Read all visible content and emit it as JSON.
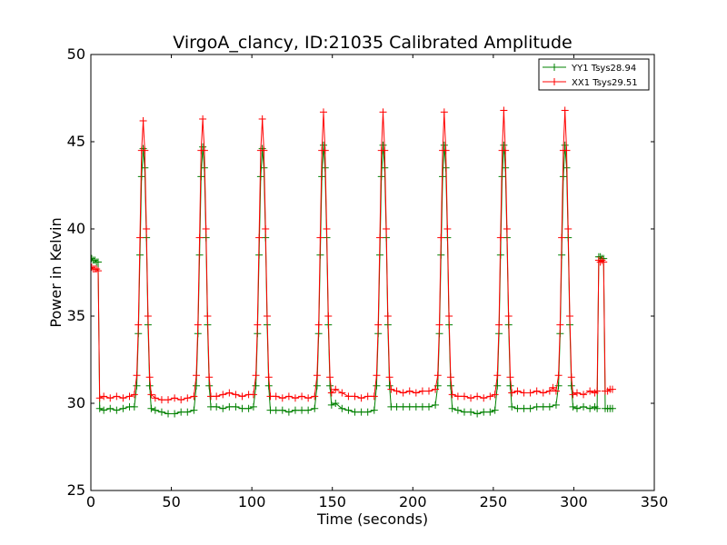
{
  "chart_data": {
    "type": "line",
    "title": "VirgoA_clancy, ID:21035 Calibrated Amplitude",
    "xlabel": "Time (seconds)",
    "ylabel": "Power in Kelvin",
    "xlim": [
      0,
      350
    ],
    "ylim": [
      25,
      50
    ],
    "x_ticks": [
      "0",
      "50",
      "100",
      "150",
      "200",
      "250",
      "300",
      "350"
    ],
    "y_ticks": [
      "25",
      "30",
      "35",
      "40",
      "45",
      "50"
    ],
    "legend_position": "top-right",
    "grid": false,
    "series": [
      {
        "name": "YY1 Tsys28.94",
        "color": "#008000",
        "marker": "+",
        "points": [
          [
            0.5,
            38.3
          ],
          [
            1.5,
            38.2
          ],
          [
            2.5,
            38.2
          ],
          [
            3.5,
            38.1
          ],
          [
            4.5,
            38.1
          ],
          [
            5.5,
            29.7
          ],
          [
            8,
            29.6
          ],
          [
            12,
            29.7
          ],
          [
            16,
            29.6
          ],
          [
            20,
            29.7
          ],
          [
            24,
            29.8
          ],
          [
            27,
            29.8
          ],
          [
            28.5,
            31.0
          ],
          [
            29.5,
            34.0
          ],
          [
            30.5,
            38.5
          ],
          [
            31.5,
            43.0
          ],
          [
            32.5,
            44.6
          ],
          [
            33.5,
            43.5
          ],
          [
            34.5,
            39.5
          ],
          [
            35.5,
            34.5
          ],
          [
            36.5,
            31.0
          ],
          [
            37.5,
            29.7
          ],
          [
            40,
            29.6
          ],
          [
            44,
            29.5
          ],
          [
            48,
            29.4
          ],
          [
            52,
            29.4
          ],
          [
            56,
            29.5
          ],
          [
            60,
            29.5
          ],
          [
            64,
            29.6
          ],
          [
            65.5,
            31.0
          ],
          [
            66.5,
            34.0
          ],
          [
            67.5,
            38.5
          ],
          [
            68.5,
            43.0
          ],
          [
            69.5,
            44.7
          ],
          [
            70.5,
            43.5
          ],
          [
            71.5,
            39.5
          ],
          [
            72.5,
            34.5
          ],
          [
            73.5,
            31.0
          ],
          [
            74.5,
            29.8
          ],
          [
            78,
            29.8
          ],
          [
            82,
            29.7
          ],
          [
            86,
            29.8
          ],
          [
            90,
            29.8
          ],
          [
            94,
            29.7
          ],
          [
            98,
            29.7
          ],
          [
            101,
            29.8
          ],
          [
            102.5,
            31.0
          ],
          [
            103.5,
            34.0
          ],
          [
            104.5,
            38.5
          ],
          [
            105.5,
            43.0
          ],
          [
            106.5,
            44.6
          ],
          [
            107.5,
            43.5
          ],
          [
            108.5,
            39.5
          ],
          [
            109.5,
            34.5
          ],
          [
            110.5,
            31.0
          ],
          [
            111.5,
            29.6
          ],
          [
            115,
            29.6
          ],
          [
            119,
            29.6
          ],
          [
            123,
            29.5
          ],
          [
            127,
            29.6
          ],
          [
            131,
            29.6
          ],
          [
            135,
            29.6
          ],
          [
            139,
            29.7
          ],
          [
            140.5,
            31.0
          ],
          [
            141.5,
            34.0
          ],
          [
            142.5,
            38.5
          ],
          [
            143.5,
            43.0
          ],
          [
            144.5,
            44.8
          ],
          [
            145.5,
            43.5
          ],
          [
            146.5,
            39.5
          ],
          [
            147.5,
            34.5
          ],
          [
            148.5,
            31.0
          ],
          [
            149.5,
            29.9
          ],
          [
            152,
            30.0
          ],
          [
            156,
            29.7
          ],
          [
            160,
            29.6
          ],
          [
            164,
            29.5
          ],
          [
            168,
            29.5
          ],
          [
            172,
            29.5
          ],
          [
            176,
            29.6
          ],
          [
            177.5,
            31.0
          ],
          [
            178.5,
            34.0
          ],
          [
            179.5,
            38.5
          ],
          [
            180.5,
            43.0
          ],
          [
            181.5,
            44.8
          ],
          [
            182.5,
            43.5
          ],
          [
            183.5,
            39.5
          ],
          [
            184.5,
            34.5
          ],
          [
            185.5,
            31.0
          ],
          [
            186.5,
            29.8
          ],
          [
            190,
            29.8
          ],
          [
            194,
            29.8
          ],
          [
            198,
            29.8
          ],
          [
            202,
            29.8
          ],
          [
            206,
            29.8
          ],
          [
            210,
            29.8
          ],
          [
            214,
            29.9
          ],
          [
            215.5,
            31.0
          ],
          [
            216.5,
            34.0
          ],
          [
            217.5,
            38.5
          ],
          [
            218.5,
            43.0
          ],
          [
            219.5,
            44.8
          ],
          [
            220.5,
            43.5
          ],
          [
            221.5,
            39.5
          ],
          [
            222.5,
            34.5
          ],
          [
            223.5,
            31.0
          ],
          [
            224.5,
            29.7
          ],
          [
            228,
            29.6
          ],
          [
            232,
            29.5
          ],
          [
            236,
            29.5
          ],
          [
            240,
            29.4
          ],
          [
            244,
            29.5
          ],
          [
            248,
            29.5
          ],
          [
            251,
            29.6
          ],
          [
            252.5,
            31.0
          ],
          [
            253.5,
            34.0
          ],
          [
            254.5,
            38.5
          ],
          [
            255.5,
            43.0
          ],
          [
            256.5,
            44.8
          ],
          [
            257.5,
            43.5
          ],
          [
            258.5,
            39.5
          ],
          [
            259.5,
            34.5
          ],
          [
            260.5,
            31.0
          ],
          [
            261.5,
            29.8
          ],
          [
            265,
            29.7
          ],
          [
            269,
            29.7
          ],
          [
            273,
            29.7
          ],
          [
            277,
            29.8
          ],
          [
            281,
            29.8
          ],
          [
            285,
            29.8
          ],
          [
            289,
            29.9
          ],
          [
            290.5,
            31.0
          ],
          [
            291.5,
            34.0
          ],
          [
            292.5,
            38.5
          ],
          [
            293.5,
            43.0
          ],
          [
            294.5,
            44.8
          ],
          [
            295.5,
            43.5
          ],
          [
            296.5,
            39.5
          ],
          [
            297.5,
            34.5
          ],
          [
            298.5,
            31.0
          ],
          [
            299.5,
            29.8
          ],
          [
            302,
            29.7
          ],
          [
            306,
            29.8
          ],
          [
            310,
            29.7
          ],
          [
            313,
            29.8
          ],
          [
            314.5,
            29.7
          ],
          [
            315.5,
            38.4
          ],
          [
            316.5,
            38.4
          ],
          [
            317.5,
            38.3
          ],
          [
            318.5,
            38.3
          ],
          [
            319.5,
            29.7
          ],
          [
            321,
            29.7
          ],
          [
            322.5,
            29.7
          ],
          [
            324,
            29.7
          ]
        ]
      },
      {
        "name": "XX1 Tsys29.51",
        "color": "#ff0000",
        "marker": "+",
        "points": [
          [
            0.5,
            37.8
          ],
          [
            1.5,
            37.7
          ],
          [
            2.5,
            37.7
          ],
          [
            3.5,
            37.7
          ],
          [
            4.5,
            37.6
          ],
          [
            5.5,
            30.3
          ],
          [
            8,
            30.4
          ],
          [
            12,
            30.3
          ],
          [
            16,
            30.4
          ],
          [
            20,
            30.3
          ],
          [
            24,
            30.4
          ],
          [
            27,
            30.5
          ],
          [
            28.5,
            31.6
          ],
          [
            29.5,
            34.5
          ],
          [
            30.5,
            39.5
          ],
          [
            31.5,
            44.5
          ],
          [
            32.5,
            46.2
          ],
          [
            33.5,
            44.5
          ],
          [
            34.5,
            40.0
          ],
          [
            35.5,
            35.0
          ],
          [
            36.5,
            31.5
          ],
          [
            37.5,
            30.5
          ],
          [
            40,
            30.3
          ],
          [
            44,
            30.2
          ],
          [
            48,
            30.2
          ],
          [
            52,
            30.3
          ],
          [
            56,
            30.2
          ],
          [
            60,
            30.3
          ],
          [
            64,
            30.4
          ],
          [
            65.5,
            31.6
          ],
          [
            66.5,
            34.5
          ],
          [
            67.5,
            39.5
          ],
          [
            68.5,
            44.5
          ],
          [
            69.5,
            46.3
          ],
          [
            70.5,
            44.5
          ],
          [
            71.5,
            40.0
          ],
          [
            72.5,
            35.0
          ],
          [
            73.5,
            31.5
          ],
          [
            74.5,
            30.4
          ],
          [
            78,
            30.4
          ],
          [
            82,
            30.5
          ],
          [
            86,
            30.6
          ],
          [
            90,
            30.5
          ],
          [
            94,
            30.4
          ],
          [
            98,
            30.5
          ],
          [
            101,
            30.5
          ],
          [
            102.5,
            31.6
          ],
          [
            103.5,
            34.5
          ],
          [
            104.5,
            39.5
          ],
          [
            105.5,
            44.5
          ],
          [
            106.5,
            46.3
          ],
          [
            107.5,
            44.5
          ],
          [
            108.5,
            40.0
          ],
          [
            109.5,
            35.0
          ],
          [
            110.5,
            31.5
          ],
          [
            111.5,
            30.4
          ],
          [
            115,
            30.4
          ],
          [
            119,
            30.3
          ],
          [
            123,
            30.4
          ],
          [
            127,
            30.3
          ],
          [
            131,
            30.4
          ],
          [
            135,
            30.3
          ],
          [
            139,
            30.4
          ],
          [
            140.5,
            31.6
          ],
          [
            141.5,
            34.5
          ],
          [
            142.5,
            39.5
          ],
          [
            143.5,
            44.5
          ],
          [
            144.5,
            46.7
          ],
          [
            145.5,
            44.5
          ],
          [
            146.5,
            40.0
          ],
          [
            147.5,
            35.0
          ],
          [
            148.5,
            31.5
          ],
          [
            149.5,
            30.6
          ],
          [
            152,
            30.8
          ],
          [
            156,
            30.6
          ],
          [
            160,
            30.4
          ],
          [
            164,
            30.4
          ],
          [
            168,
            30.3
          ],
          [
            172,
            30.4
          ],
          [
            176,
            30.4
          ],
          [
            177.5,
            31.6
          ],
          [
            178.5,
            34.5
          ],
          [
            179.5,
            39.5
          ],
          [
            180.5,
            44.5
          ],
          [
            181.5,
            46.7
          ],
          [
            182.5,
            44.5
          ],
          [
            183.5,
            40.0
          ],
          [
            184.5,
            35.0
          ],
          [
            185.5,
            31.5
          ],
          [
            186.5,
            30.8
          ],
          [
            190,
            30.7
          ],
          [
            194,
            30.6
          ],
          [
            198,
            30.7
          ],
          [
            202,
            30.6
          ],
          [
            206,
            30.7
          ],
          [
            210,
            30.7
          ],
          [
            214,
            30.8
          ],
          [
            215.5,
            31.6
          ],
          [
            216.5,
            34.5
          ],
          [
            217.5,
            39.5
          ],
          [
            218.5,
            44.5
          ],
          [
            219.5,
            46.7
          ],
          [
            220.5,
            44.5
          ],
          [
            221.5,
            40.0
          ],
          [
            222.5,
            35.0
          ],
          [
            223.5,
            31.5
          ],
          [
            224.5,
            30.5
          ],
          [
            228,
            30.4
          ],
          [
            232,
            30.4
          ],
          [
            236,
            30.3
          ],
          [
            240,
            30.4
          ],
          [
            244,
            30.3
          ],
          [
            248,
            30.4
          ],
          [
            251,
            30.5
          ],
          [
            252.5,
            31.6
          ],
          [
            253.5,
            34.5
          ],
          [
            254.5,
            39.5
          ],
          [
            255.5,
            44.5
          ],
          [
            256.5,
            46.8
          ],
          [
            257.5,
            44.5
          ],
          [
            258.5,
            40.0
          ],
          [
            259.5,
            35.0
          ],
          [
            260.5,
            31.5
          ],
          [
            261.5,
            30.6
          ],
          [
            265,
            30.7
          ],
          [
            269,
            30.6
          ],
          [
            273,
            30.6
          ],
          [
            277,
            30.7
          ],
          [
            281,
            30.6
          ],
          [
            285,
            30.7
          ],
          [
            287,
            30.9
          ],
          [
            289,
            30.7
          ],
          [
            290.5,
            31.6
          ],
          [
            291.5,
            34.5
          ],
          [
            292.5,
            39.5
          ],
          [
            293.5,
            44.5
          ],
          [
            294.5,
            46.8
          ],
          [
            295.5,
            44.5
          ],
          [
            296.5,
            40.0
          ],
          [
            297.5,
            35.0
          ],
          [
            298.5,
            31.5
          ],
          [
            299.5,
            30.5
          ],
          [
            302,
            30.6
          ],
          [
            306,
            30.5
          ],
          [
            310,
            30.7
          ],
          [
            313,
            30.6
          ],
          [
            314.5,
            30.7
          ],
          [
            315.5,
            38.2
          ],
          [
            316.5,
            38.1
          ],
          [
            317.5,
            38.2
          ],
          [
            318.5,
            38.1
          ],
          [
            319.5,
            30.7
          ],
          [
            321,
            30.7
          ],
          [
            322.5,
            30.8
          ],
          [
            324,
            30.8
          ]
        ]
      }
    ]
  }
}
